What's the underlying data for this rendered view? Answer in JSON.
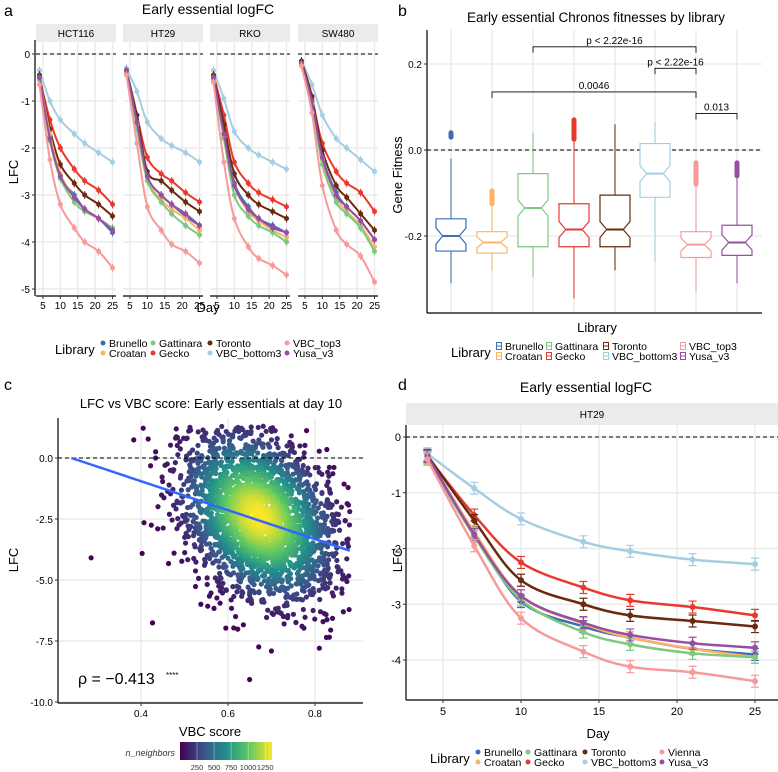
{
  "libraries": {
    "Brunello": "#3a6fb6",
    "Croatan": "#fdb462",
    "Gattinara": "#7fc97f",
    "Gecko": "#e8392f",
    "Toronto": "#6b2a0d",
    "VBC_bottom3": "#a6cee3",
    "VBC_top3": "#f79a9a",
    "Vienna": "#f79a9a",
    "Yusa_v3": "#984ea3"
  },
  "chart_data": [
    {
      "panel": "a",
      "type": "line",
      "title": "Early essential logFC",
      "xlabel": "Day",
      "ylabel": "LFC",
      "xlim": [
        3,
        26
      ],
      "ylim": [
        -5.2,
        0.2
      ],
      "xticks": [
        5,
        10,
        15,
        20,
        25
      ],
      "yticks": [
        0,
        -1,
        -2,
        -3,
        -4,
        -5
      ],
      "hline": 0,
      "legend": {
        "title": "Library",
        "position": "bottom",
        "entries": [
          "Brunello",
          "Croatan",
          "Gattinara",
          "Gecko",
          "Toronto",
          "VBC_bottom3",
          "VBC_top3",
          "Yusa_v3"
        ]
      },
      "x": [
        4,
        7,
        10,
        14,
        17,
        21,
        25
      ],
      "facets": [
        {
          "name": "HCT116",
          "series": [
            {
              "name": "VBC_bottom3",
              "values": [
                -0.35,
                -1.0,
                -1.4,
                -1.7,
                -1.9,
                -2.1,
                -2.3
              ]
            },
            {
              "name": "Gecko",
              "values": [
                -0.5,
                -1.4,
                -2.0,
                -2.45,
                -2.7,
                -2.9,
                -3.2
              ]
            },
            {
              "name": "Toronto",
              "values": [
                -0.45,
                -1.6,
                -2.35,
                -2.75,
                -3.0,
                -3.2,
                -3.45
              ]
            },
            {
              "name": "Brunello",
              "values": [
                -0.5,
                -1.75,
                -2.6,
                -3.0,
                -3.3,
                -3.5,
                -3.8
              ]
            },
            {
              "name": "Croatan",
              "values": [
                -0.5,
                -1.7,
                -2.55,
                -3.05,
                -3.3,
                -3.5,
                -3.75
              ]
            },
            {
              "name": "Gattinara",
              "values": [
                -0.55,
                -1.85,
                -2.65,
                -3.15,
                -3.35,
                -3.5,
                -3.7
              ]
            },
            {
              "name": "Yusa_v3",
              "values": [
                -0.5,
                -1.8,
                -2.6,
                -3.05,
                -3.3,
                -3.5,
                -3.75
              ]
            },
            {
              "name": "VBC_top3",
              "values": [
                -0.65,
                -2.25,
                -3.2,
                -3.7,
                -4.0,
                -4.2,
                -4.55
              ]
            }
          ]
        },
        {
          "name": "HT29",
          "series": [
            {
              "name": "VBC_bottom3",
              "values": [
                -0.3,
                -0.8,
                -1.45,
                -1.8,
                -1.95,
                -2.1,
                -2.3
              ]
            },
            {
              "name": "Gecko",
              "values": [
                -0.4,
                -1.3,
                -2.2,
                -2.55,
                -2.7,
                -2.95,
                -3.15
              ]
            },
            {
              "name": "Toronto",
              "values": [
                -0.35,
                -1.3,
                -2.5,
                -2.7,
                -2.9,
                -3.15,
                -3.35
              ]
            },
            {
              "name": "Brunello",
              "values": [
                -0.35,
                -1.45,
                -2.6,
                -3.0,
                -3.2,
                -3.45,
                -3.65
              ]
            },
            {
              "name": "Croatan",
              "values": [
                -0.38,
                -1.5,
                -2.65,
                -3.1,
                -3.3,
                -3.5,
                -3.75
              ]
            },
            {
              "name": "Gattinara",
              "values": [
                -0.4,
                -1.6,
                -2.7,
                -3.15,
                -3.4,
                -3.65,
                -3.85
              ]
            },
            {
              "name": "Yusa_v3",
              "values": [
                -0.35,
                -1.45,
                -2.6,
                -3.0,
                -3.2,
                -3.4,
                -3.65
              ]
            },
            {
              "name": "VBC_top3",
              "values": [
                -0.45,
                -1.9,
                -3.25,
                -3.75,
                -4.05,
                -4.2,
                -4.45
              ]
            }
          ]
        },
        {
          "name": "RKO",
          "series": [
            {
              "name": "VBC_bottom3",
              "values": [
                -0.35,
                -0.95,
                -1.65,
                -2.0,
                -2.15,
                -2.3,
                -2.45
              ]
            },
            {
              "name": "Gecko",
              "values": [
                -0.45,
                -1.3,
                -2.3,
                -2.75,
                -2.95,
                -3.1,
                -3.25
              ]
            },
            {
              "name": "Toronto",
              "values": [
                -0.45,
                -1.5,
                -2.55,
                -3.0,
                -3.2,
                -3.35,
                -3.5
              ]
            },
            {
              "name": "Brunello",
              "values": [
                -0.5,
                -1.7,
                -2.75,
                -3.25,
                -3.5,
                -3.65,
                -3.8
              ]
            },
            {
              "name": "Croatan",
              "values": [
                -0.5,
                -1.75,
                -2.8,
                -3.35,
                -3.55,
                -3.75,
                -3.9
              ]
            },
            {
              "name": "Gattinara",
              "values": [
                -0.55,
                -1.8,
                -3.0,
                -3.45,
                -3.65,
                -3.8,
                -4.0
              ]
            },
            {
              "name": "Yusa_v3",
              "values": [
                -0.5,
                -1.7,
                -2.8,
                -3.3,
                -3.5,
                -3.7,
                -3.8
              ]
            },
            {
              "name": "VBC_top3",
              "values": [
                -0.6,
                -2.3,
                -3.5,
                -4.1,
                -4.35,
                -4.5,
                -4.7
              ]
            }
          ]
        },
        {
          "name": "SW480",
          "series": [
            {
              "name": "VBC_bottom3",
              "values": [
                -0.15,
                -0.65,
                -1.3,
                -1.8,
                -2.0,
                -2.25,
                -2.5
              ]
            },
            {
              "name": "Gecko",
              "values": [
                -0.2,
                -0.95,
                -1.9,
                -2.5,
                -2.75,
                -2.95,
                -3.35
              ]
            },
            {
              "name": "Toronto",
              "values": [
                -0.15,
                -0.9,
                -2.05,
                -2.8,
                -3.05,
                -3.4,
                -3.75
              ]
            },
            {
              "name": "Brunello",
              "values": [
                -0.2,
                -1.05,
                -2.2,
                -2.95,
                -3.25,
                -3.55,
                -3.95
              ]
            },
            {
              "name": "Croatan",
              "values": [
                -0.2,
                -1.05,
                -2.25,
                -3.05,
                -3.35,
                -3.65,
                -4.1
              ]
            },
            {
              "name": "Gattinara",
              "values": [
                -0.25,
                -1.1,
                -2.35,
                -3.15,
                -3.4,
                -3.7,
                -4.2
              ]
            },
            {
              "name": "Yusa_v3",
              "values": [
                -0.2,
                -1.0,
                -2.2,
                -3.0,
                -3.25,
                -3.55,
                -3.95
              ]
            },
            {
              "name": "VBC_top3",
              "values": [
                -0.25,
                -1.25,
                -2.8,
                -3.75,
                -4.05,
                -4.3,
                -4.85
              ]
            }
          ]
        }
      ]
    },
    {
      "panel": "b",
      "type": "box",
      "title": "Early essential Chronos fitnesses by library",
      "xlabel": "Library",
      "ylabel": "Gene Fitness",
      "ylim": [
        -0.37,
        0.28
      ],
      "yticks": [
        0.2,
        0.0,
        -0.2
      ],
      "ytick_labels": [
        "0.2",
        "0.0",
        "-0.2"
      ],
      "hline": 0,
      "legend": {
        "title": "Library",
        "position": "bottom",
        "entries": [
          "Brunello",
          "Croatan",
          "Gattinara",
          "Gecko",
          "Toronto",
          "VBC_bottom3",
          "VBC_top3",
          "Yusa_v3"
        ]
      },
      "categories": [
        "Brunello",
        "Croatan",
        "Gattinara",
        "Gecko",
        "Toronto",
        "VBC_bottom3",
        "VBC_top3",
        "Yusa_v3"
      ],
      "boxes": [
        {
          "name": "Brunello",
          "whisker_low": -0.31,
          "q1": -0.235,
          "median": -0.2,
          "q3": -0.16,
          "whisker_high": -0.02,
          "outliers_low": 0.03,
          "outliers_high": 0.04
        },
        {
          "name": "Croatan",
          "whisker_low": -0.28,
          "q1": -0.24,
          "median": -0.215,
          "q3": -0.19,
          "whisker_high": -0.09,
          "outliers_low": -0.125,
          "outliers_high": -0.095
        },
        {
          "name": "Gattinara",
          "whisker_low": -0.295,
          "q1": -0.225,
          "median": -0.135,
          "q3": -0.055,
          "whisker_high": 0.04,
          "outliers_low": null,
          "outliers_high": null
        },
        {
          "name": "Gecko",
          "whisker_low": -0.345,
          "q1": -0.225,
          "median": -0.185,
          "q3": -0.125,
          "whisker_high": 0.02,
          "outliers_low": 0.025,
          "outliers_high": 0.07
        },
        {
          "name": "Toronto",
          "whisker_low": -0.28,
          "q1": -0.225,
          "median": -0.185,
          "q3": -0.105,
          "whisker_high": 0.06,
          "outliers_low": null,
          "outliers_high": null
        },
        {
          "name": "VBC_bottom3",
          "whisker_low": -0.26,
          "q1": -0.11,
          "median": -0.055,
          "q3": 0.015,
          "whisker_high": 0.065,
          "outliers_low": null,
          "outliers_high": null
        },
        {
          "name": "VBC_top3",
          "whisker_low": -0.33,
          "q1": -0.25,
          "median": -0.22,
          "q3": -0.19,
          "whisker_high": -0.08,
          "outliers_low": -0.08,
          "outliers_high": -0.03
        },
        {
          "name": "Yusa_v3",
          "whisker_low": -0.31,
          "q1": -0.245,
          "median": -0.215,
          "q3": -0.175,
          "whisker_high": -0.06,
          "outliers_low": -0.06,
          "outliers_high": -0.03
        }
      ],
      "annotations": [
        {
          "from": "Gattinara",
          "to": "VBC_top3",
          "label": "p < 2.22e-16",
          "level": 0.24
        },
        {
          "from": "VBC_bottom3",
          "to": "VBC_top3",
          "label": "p < 2.22e-16",
          "level": 0.19
        },
        {
          "from": "Croatan",
          "to": "VBC_top3",
          "label": "0.0046",
          "level": 0.135
        },
        {
          "from": "VBC_top3",
          "to": "Yusa_v3",
          "label": "0.013",
          "level": 0.085
        }
      ]
    },
    {
      "panel": "c",
      "type": "scatter",
      "title": "LFC vs VBC score: Early essentials at day 10",
      "xlabel": "VBC score",
      "ylabel": "LFC",
      "xlim": [
        0.2,
        0.91
      ],
      "ylim": [
        -10.0,
        1.8
      ],
      "xticks": [
        0.4,
        0.6,
        0.8
      ],
      "yticks": [
        0.0,
        -2.5,
        -5.0,
        -7.5,
        -10.0
      ],
      "ytick_labels": [
        "0.0",
        "-2.5",
        "-5.0",
        "-7.5",
        "-10.0"
      ],
      "hline": 0,
      "density_center": [
        0.67,
        -2.4
      ],
      "density_spread": [
        0.09,
        1.6
      ],
      "regression": {
        "x0": 0.24,
        "y0": 0.0,
        "x1": 0.88,
        "y1": -3.8
      },
      "annotation": {
        "label": "ρ = −0.413",
        "stars": "****"
      },
      "colorbar": {
        "title": "n_neighbors",
        "ticks": [
          250,
          500,
          750,
          1000,
          1250
        ],
        "range": [
          0,
          1350
        ],
        "palette": [
          "#440154",
          "#3b528b",
          "#21908c",
          "#5dc863",
          "#fde725"
        ]
      }
    },
    {
      "panel": "d",
      "type": "line",
      "title": "Early essential logFC",
      "facet": "HT29",
      "xlabel": "Day",
      "ylabel": "LFC",
      "xlim": [
        2.7,
        26.2
      ],
      "ylim": [
        -4.75,
        0.2
      ],
      "xticks": [
        5,
        10,
        15,
        20,
        25
      ],
      "yticks": [
        0,
        -1,
        -2,
        -3,
        -4
      ],
      "hline": 0,
      "legend": {
        "title": "Library",
        "position": "bottom",
        "entries": [
          "Brunello",
          "Croatan",
          "Gattinara",
          "Gecko",
          "Toronto",
          "VBC_bottom3",
          "Vienna",
          "Yusa_v3"
        ]
      },
      "x": [
        4,
        7,
        10,
        14,
        17,
        21,
        25
      ],
      "series": [
        {
          "name": "VBC_bottom3",
          "values": [
            -0.3,
            -0.92,
            -1.47,
            -1.88,
            -2.05,
            -2.2,
            -2.28
          ]
        },
        {
          "name": "Gecko",
          "values": [
            -0.35,
            -1.4,
            -2.25,
            -2.7,
            -2.93,
            -3.05,
            -3.2
          ]
        },
        {
          "name": "Toronto",
          "values": [
            -0.33,
            -1.5,
            -2.57,
            -3.0,
            -3.2,
            -3.3,
            -3.4
          ]
        },
        {
          "name": "Brunello",
          "values": [
            -0.35,
            -1.72,
            -2.95,
            -3.4,
            -3.6,
            -3.8,
            -3.9
          ]
        },
        {
          "name": "Croatan",
          "values": [
            -0.37,
            -1.7,
            -2.85,
            -3.35,
            -3.6,
            -3.8,
            -3.95
          ]
        },
        {
          "name": "Gattinara",
          "values": [
            -0.38,
            -1.78,
            -2.92,
            -3.5,
            -3.72,
            -3.88,
            -3.95
          ]
        },
        {
          "name": "Yusa_v3",
          "values": [
            -0.34,
            -1.75,
            -2.85,
            -3.33,
            -3.55,
            -3.7,
            -3.78
          ]
        },
        {
          "name": "Vienna",
          "values": [
            -0.4,
            -1.95,
            -3.25,
            -3.85,
            -4.12,
            -4.22,
            -4.38
          ]
        }
      ]
    }
  ],
  "panel_labels": {
    "a": "a",
    "b": "b",
    "c": "c",
    "d": "d"
  },
  "legend_title": "Library"
}
